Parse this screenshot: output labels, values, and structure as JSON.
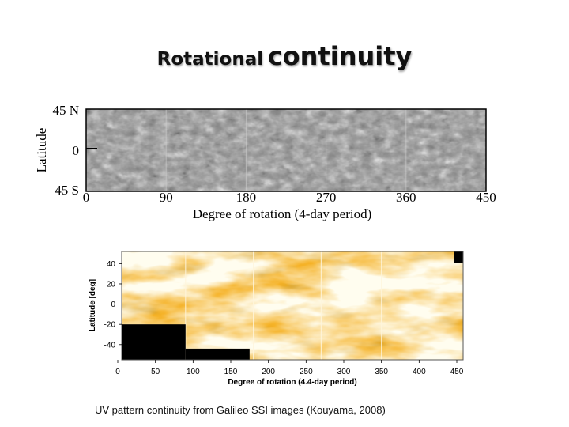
{
  "slide": {
    "title_part1": "Rotational",
    "title_part2": "continuity",
    "caption": "UV pattern continuity from Galileo SSI images (Kouyama, 2008)"
  },
  "chart_data": [
    {
      "type": "heatmap",
      "title": "",
      "xlabel": "Degree of rotation (4-day period)",
      "ylabel": "Latitude",
      "x_ticks": [
        "0",
        "90",
        "180",
        "270",
        "360",
        "450"
      ],
      "y_ticks": [
        "45 N",
        "0",
        "45 S"
      ],
      "xlim": [
        0,
        450
      ],
      "ylim": [
        -45,
        45
      ],
      "segments": [
        0,
        90,
        180,
        270,
        360,
        450
      ],
      "colormap": "grayscale"
    },
    {
      "type": "heatmap",
      "title": "",
      "xlabel": "Degree of rotation (4.4-day period)",
      "ylabel": "Latitude [deg]",
      "x_ticks": [
        "0",
        "50",
        "100",
        "150",
        "200",
        "250",
        "300",
        "350",
        "400",
        "450"
      ],
      "y_ticks": [
        "40",
        "20",
        "0",
        "-20",
        "-40"
      ],
      "xlim": [
        0,
        450
      ],
      "ylim": [
        -55,
        52
      ],
      "segments": [
        0,
        90,
        180,
        270,
        350,
        450
      ],
      "colormap": "orange",
      "colors": {
        "light": "#fff3c8",
        "mid": "#f5b227",
        "dark": "#b86a0c",
        "void": "#000000"
      },
      "no_data": [
        {
          "x_from": 0,
          "x_to": 90,
          "lat_from": -55,
          "lat_to": -20
        },
        {
          "x_from": 90,
          "x_to": 175,
          "lat_from": -55,
          "lat_to": -44
        }
      ]
    }
  ]
}
